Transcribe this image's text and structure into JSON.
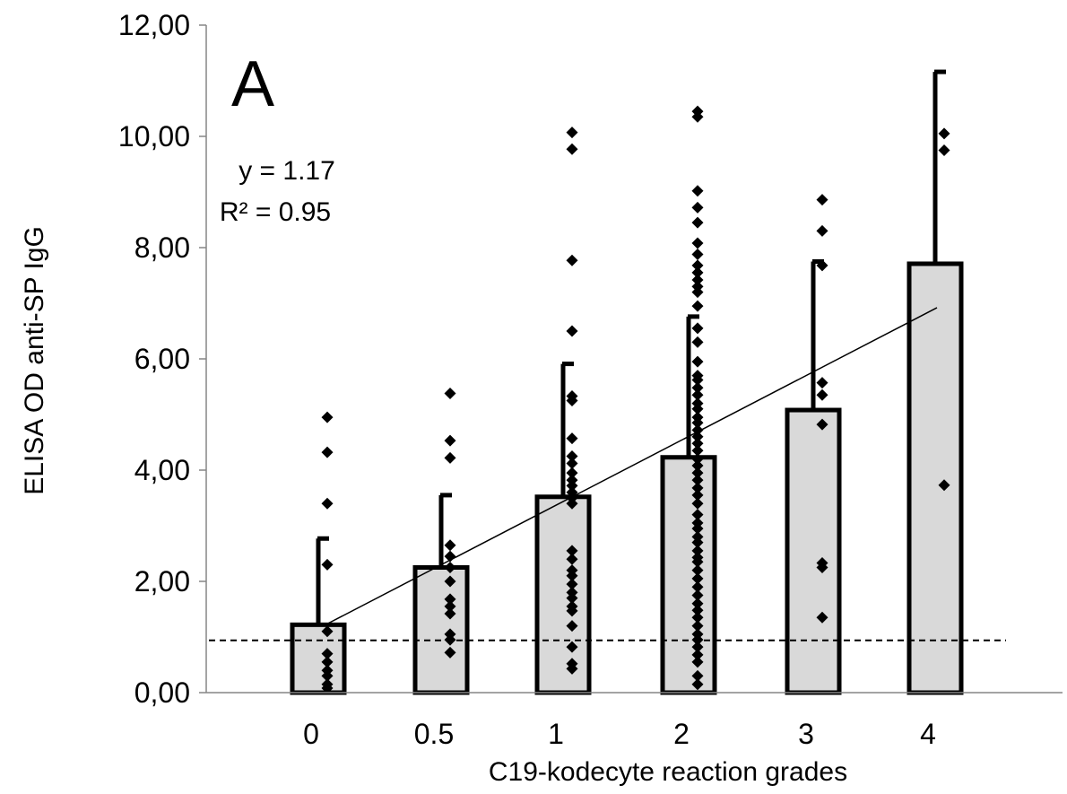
{
  "chart_data": {
    "type": "bar",
    "panel_label": "A",
    "xlabel": "C19-kodecyte reaction grades",
    "ylabel": "ELISA OD anti-SP IgG",
    "ylim": [
      0,
      12
    ],
    "y_ticks": [
      "0,00",
      "2,00",
      "4,00",
      "6,00",
      "8,00",
      "10,00",
      "12,00"
    ],
    "categories": [
      "0",
      "0.5",
      "1",
      "2",
      "3",
      "4"
    ],
    "values": [
      1.22,
      2.25,
      3.52,
      4.23,
      5.08,
      7.71
    ],
    "error_upper": [
      2.77,
      3.55,
      5.91,
      6.76,
      7.75,
      11.16
    ],
    "points": [
      [
        4.95,
        4.32,
        3.4,
        2.3,
        1.1,
        0.7,
        0.55,
        0.4,
        0.3,
        0.15,
        0.08
      ],
      [
        5.38,
        4.53,
        4.22,
        2.65,
        2.45,
        2.25,
        2.0,
        1.68,
        1.55,
        1.42,
        1.05,
        0.95,
        0.72
      ],
      [
        10.07,
        9.77,
        7.77,
        6.5,
        5.33,
        5.25,
        4.57,
        4.25,
        4.12,
        3.95,
        3.82,
        3.72,
        3.6,
        3.5,
        3.4,
        2.55,
        2.4,
        2.2,
        2.1,
        1.95,
        1.8,
        1.7,
        1.55,
        1.47,
        1.2,
        0.82,
        0.52,
        0.43
      ],
      [
        10.45,
        10.35,
        9.02,
        8.72,
        8.45,
        8.08,
        7.88,
        7.68,
        7.55,
        7.42,
        7.3,
        7.2,
        6.95,
        6.55,
        6.3,
        5.95,
        5.7,
        5.62,
        5.48,
        5.35,
        5.2,
        5.1,
        4.95,
        4.85,
        4.72,
        4.6,
        4.48,
        4.35,
        4.2,
        4.08,
        3.95,
        3.82,
        3.68,
        3.55,
        3.4,
        3.2,
        3.05,
        2.95,
        2.8,
        2.7,
        2.55,
        2.43,
        2.35,
        2.2,
        2.05,
        1.9,
        1.75,
        1.6,
        1.48,
        1.35,
        1.2,
        1.05,
        0.95,
        0.82,
        0.68,
        0.55,
        0.3,
        0.15
      ],
      [
        8.86,
        8.3,
        7.68,
        5.57,
        5.35,
        4.82,
        2.33,
        2.25,
        1.35
      ],
      [
        10.05,
        9.75,
        3.73
      ]
    ],
    "trendline": {
      "from": 1.22,
      "to": 6.92
    },
    "threshold": 0.94,
    "equation": "y = 1.17",
    "r_squared": "R² = 0.95",
    "grid": false,
    "colors": {
      "bar_fill": "#d9d9d9",
      "bar_stroke": "#000000",
      "marker": "#000000"
    }
  }
}
